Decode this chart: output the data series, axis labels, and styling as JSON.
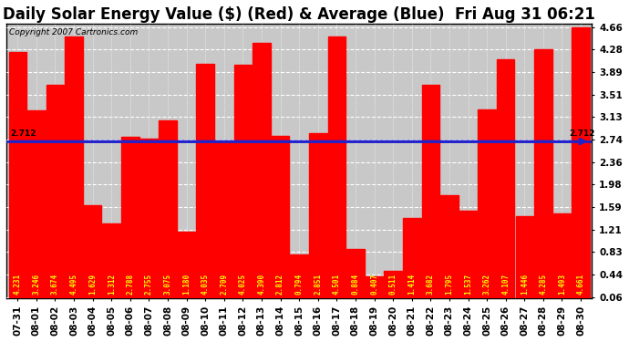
{
  "title": "Daily Solar Energy Value ($) (Red) & Average (Blue)  Fri Aug 31 06:21",
  "copyright": "Copyright 2007 Cartronics.com",
  "categories": [
    "07-31",
    "08-01",
    "08-02",
    "08-03",
    "08-04",
    "08-05",
    "08-06",
    "08-07",
    "08-08",
    "08-09",
    "08-10",
    "08-11",
    "08-12",
    "08-13",
    "08-14",
    "08-15",
    "08-16",
    "08-17",
    "08-18",
    "08-19",
    "08-20",
    "08-21",
    "08-22",
    "08-23",
    "08-24",
    "08-25",
    "08-26",
    "08-27",
    "08-28",
    "08-29",
    "08-30"
  ],
  "values": [
    4.231,
    3.246,
    3.674,
    4.495,
    1.629,
    1.312,
    2.788,
    2.755,
    3.075,
    1.18,
    4.035,
    2.709,
    4.025,
    4.39,
    2.812,
    0.794,
    2.851,
    4.501,
    0.884,
    0.407,
    0.511,
    1.414,
    3.682,
    1.795,
    1.537,
    3.262,
    4.107,
    1.446,
    4.285,
    1.493,
    4.661
  ],
  "average": 2.712,
  "bar_color": "#ff0000",
  "avg_line_color": "#2222cc",
  "outer_bg_color": "#ffffff",
  "plot_bg_color": "#c8c8c8",
  "border_color": "#000000",
  "ylim_low": 0.06,
  "ylim_high": 4.71,
  "yticks": [
    0.06,
    0.44,
    0.83,
    1.21,
    1.59,
    1.98,
    2.36,
    2.74,
    3.13,
    3.51,
    3.89,
    4.28,
    4.66
  ],
  "avg_label": "2.712",
  "title_fontsize": 12,
  "tick_fontsize": 7.5,
  "bar_label_fontsize": 5.5,
  "copyright_fontsize": 6.5
}
